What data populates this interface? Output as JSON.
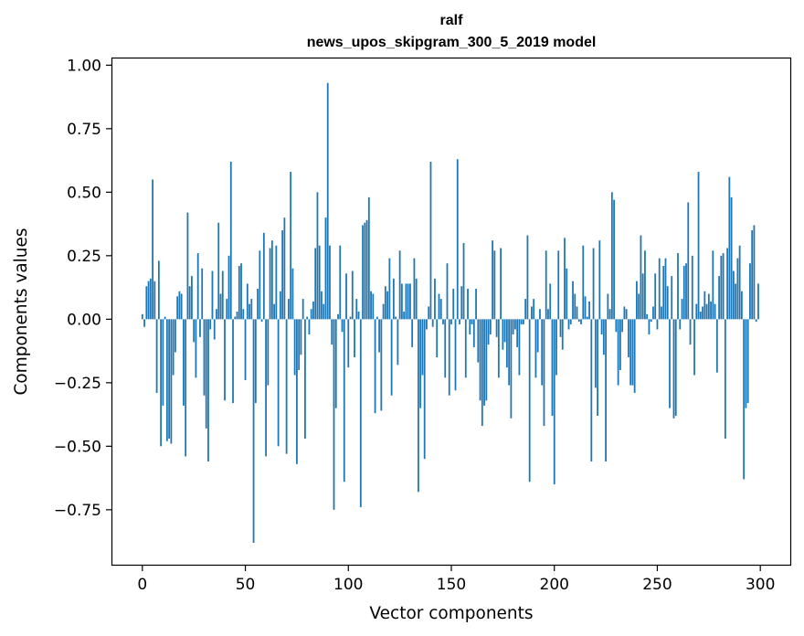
{
  "chart_data": {
    "type": "bar",
    "title": "ralf",
    "subtitle": "news_upos_skipgram_300_5_2019 model",
    "xlabel": "Vector components",
    "ylabel": "Components values",
    "xlim": [
      -15,
      315
    ],
    "ylim": [
      -0.97,
      1.03
    ],
    "xticks": [
      0,
      50,
      100,
      150,
      200,
      250,
      300
    ],
    "xtick_labels": [
      "0",
      "50",
      "100",
      "150",
      "200",
      "250",
      "300"
    ],
    "yticks": [
      1.0,
      0.75,
      0.5,
      0.25,
      0.0,
      -0.25,
      -0.5,
      -0.75
    ],
    "ytick_labels": [
      "1.00",
      "0.75",
      "0.50",
      "0.25",
      "0.00",
      "−0.25",
      "−0.50",
      "−0.75"
    ],
    "grid": false,
    "bar_color": "#1f77b4",
    "x": [
      0,
      1,
      2,
      3,
      4,
      5,
      6,
      7,
      8,
      9,
      10,
      11,
      12,
      13,
      14,
      15,
      16,
      17,
      18,
      19,
      20,
      21,
      22,
      23,
      24,
      25,
      26,
      27,
      28,
      29,
      30,
      31,
      32,
      33,
      34,
      35,
      36,
      37,
      38,
      39,
      40,
      41,
      42,
      43,
      44,
      45,
      46,
      47,
      48,
      49,
      50,
      51,
      52,
      53,
      54,
      55,
      56,
      57,
      58,
      59,
      60,
      61,
      62,
      63,
      64,
      65,
      66,
      67,
      68,
      69,
      70,
      71,
      72,
      73,
      74,
      75,
      76,
      77,
      78,
      79,
      80,
      81,
      82,
      83,
      84,
      85,
      86,
      87,
      88,
      89,
      90,
      91,
      92,
      93,
      94,
      95,
      96,
      97,
      98,
      99,
      100,
      101,
      102,
      103,
      104,
      105,
      106,
      107,
      108,
      109,
      110,
      111,
      112,
      113,
      114,
      115,
      116,
      117,
      118,
      119,
      120,
      121,
      122,
      123,
      124,
      125,
      126,
      127,
      128,
      129,
      130,
      131,
      132,
      133,
      134,
      135,
      136,
      137,
      138,
      139,
      140,
      141,
      142,
      143,
      144,
      145,
      146,
      147,
      148,
      149,
      150,
      151,
      152,
      153,
      154,
      155,
      156,
      157,
      158,
      159,
      160,
      161,
      162,
      163,
      164,
      165,
      166,
      167,
      168,
      169,
      170,
      171,
      172,
      173,
      174,
      175,
      176,
      177,
      178,
      179,
      180,
      181,
      182,
      183,
      184,
      185,
      186,
      187,
      188,
      189,
      190,
      191,
      192,
      193,
      194,
      195,
      196,
      197,
      198,
      199,
      200,
      201,
      202,
      203,
      204,
      205,
      206,
      207,
      208,
      209,
      210,
      211,
      212,
      213,
      214,
      215,
      216,
      217,
      218,
      219,
      220,
      221,
      222,
      223,
      224,
      225,
      226,
      227,
      228,
      229,
      230,
      231,
      232,
      233,
      234,
      235,
      236,
      237,
      238,
      239,
      240,
      241,
      242,
      243,
      244,
      245,
      246,
      247,
      248,
      249,
      250,
      251,
      252,
      253,
      254,
      255,
      256,
      257,
      258,
      259,
      260,
      261,
      262,
      263,
      264,
      265,
      266,
      267,
      268,
      269,
      270,
      271,
      272,
      273,
      274,
      275,
      276,
      277,
      278,
      279,
      280,
      281,
      282,
      283,
      284,
      285,
      286,
      287,
      288,
      289,
      290,
      291,
      292,
      293,
      294,
      295,
      296,
      297,
      298,
      299
    ],
    "values": [
      0.02,
      -0.03,
      0.13,
      0.15,
      0.16,
      0.55,
      0.15,
      -0.29,
      0.23,
      -0.5,
      -0.34,
      0.01,
      -0.48,
      -0.47,
      -0.49,
      -0.22,
      -0.13,
      0.09,
      0.11,
      0.1,
      -0.34,
      -0.54,
      0.42,
      0.13,
      0.17,
      -0.09,
      -0.23,
      0.26,
      -0.07,
      0.2,
      -0.3,
      -0.43,
      -0.56,
      -0.04,
      0.19,
      -0.08,
      0.04,
      0.38,
      0.1,
      0.19,
      -0.32,
      0.08,
      0.25,
      0.62,
      -0.33,
      0.01,
      0.03,
      0.21,
      0.22,
      0.04,
      -0.24,
      0.14,
      0.06,
      0.08,
      -0.88,
      -0.33,
      0.12,
      0.27,
      -0.01,
      0.34,
      -0.54,
      -0.26,
      0.28,
      0.31,
      0.06,
      0.29,
      -0.5,
      0.11,
      0.35,
      0.4,
      -0.53,
      0.08,
      0.58,
      0.2,
      -0.22,
      -0.57,
      -0.2,
      -0.14,
      0.08,
      -0.47,
      0.01,
      -0.06,
      0.04,
      0.07,
      0.28,
      0.5,
      0.29,
      0.11,
      0.06,
      0.4,
      0.93,
      0.29,
      -0.1,
      -0.75,
      -0.35,
      0.02,
      0.29,
      -0.05,
      -0.64,
      0.18,
      -0.19,
      0.01,
      0.19,
      -0.15,
      0.08,
      0.03,
      -0.74,
      0.37,
      0.38,
      0.39,
      0.48,
      0.11,
      0.1,
      -0.37,
      0.01,
      -0.13,
      -0.36,
      0.06,
      0.13,
      0.11,
      0.24,
      -0.3,
      0.16,
      0.01,
      -0.18,
      0.27,
      0.14,
      0.03,
      0.14,
      0.14,
      0.14,
      -0.11,
      0.24,
      0.16,
      -0.68,
      -0.35,
      -0.22,
      -0.55,
      -0.04,
      0.05,
      0.62,
      -0.03,
      0.16,
      -0.15,
      0.1,
      0.08,
      -0.02,
      -0.23,
      0.22,
      -0.3,
      -0.02,
      0.12,
      -0.28,
      0.63,
      -0.02,
      0.13,
      0.3,
      -0.23,
      0.12,
      -0.06,
      -0.02,
      -0.11,
      0.12,
      -0.17,
      -0.32,
      -0.42,
      -0.34,
      -0.32,
      -0.1,
      -0.06,
      0.31,
      0.27,
      -0.07,
      -0.23,
      0.28,
      -0.12,
      -0.09,
      -0.19,
      -0.26,
      -0.39,
      -0.06,
      -0.04,
      -0.11,
      -0.22,
      -0.02,
      -0.02,
      0.08,
      0.33,
      -0.64,
      0.05,
      0.08,
      -0.23,
      -0.13,
      0.04,
      -0.26,
      -0.42,
      0.27,
      0.04,
      0.14,
      -0.38,
      -0.65,
      -0.22,
      0.27,
      -0.07,
      -0.12,
      0.32,
      0.2,
      -0.04,
      -0.02,
      0.15,
      0.1,
      0.05,
      -0.01,
      -0.02,
      0.29,
      0.09,
      0.01,
      0.07,
      -0.56,
      0.28,
      -0.27,
      -0.38,
      0.31,
      -0.06,
      -0.14,
      -0.56,
      0.1,
      0.04,
      0.5,
      0.47,
      -0.05,
      -0.26,
      -0.2,
      -0.05,
      0.05,
      0.04,
      -0.15,
      -0.26,
      -0.26,
      -0.29,
      0.15,
      0.1,
      0.33,
      0.18,
      0.27,
      0.02,
      -0.06,
      -0.01,
      0.05,
      0.18,
      -0.04,
      0.24,
      0.05,
      0.21,
      0.24,
      0.13,
      -0.35,
      0.17,
      -0.39,
      -0.38,
      0.26,
      -0.04,
      0.08,
      0.21,
      0.22,
      0.46,
      -0.1,
      0.25,
      -0.22,
      0.06,
      0.58,
      0.03,
      0.05,
      0.11,
      0.06,
      0.1,
      0.07,
      0.27,
      0.06,
      -0.21,
      0.17,
      0.25,
      0.26,
      -0.47,
      0.28,
      0.56,
      0.48,
      0.19,
      0.14,
      0.24,
      0.29,
      0.11,
      -0.63,
      -0.35,
      -0.33,
      0.22,
      0.35,
      0.37,
      -0.01,
      0.14
    ]
  }
}
